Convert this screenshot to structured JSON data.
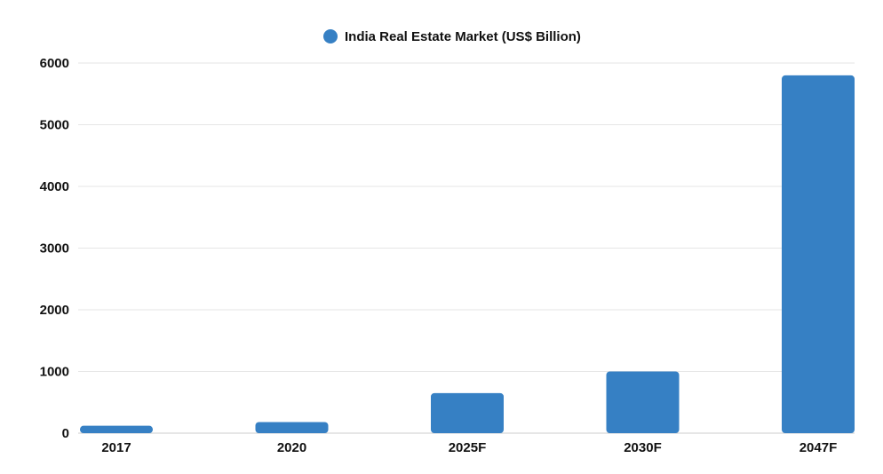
{
  "chart_data": {
    "type": "bar",
    "categories": [
      "2017",
      "2020",
      "2025F",
      "2030F",
      "2047F"
    ],
    "series": [
      {
        "name": "India Real Estate Market (US$ Billion)",
        "values": [
          120,
          180,
          650,
          1000,
          5800
        ],
        "color": "#3680C4"
      }
    ],
    "ylim": [
      0,
      6000
    ],
    "yticks": [
      0,
      1000,
      2000,
      3000,
      4000,
      5000,
      6000
    ],
    "grid": true,
    "legend_position": "top-center",
    "xlabel": "",
    "ylabel": ""
  }
}
